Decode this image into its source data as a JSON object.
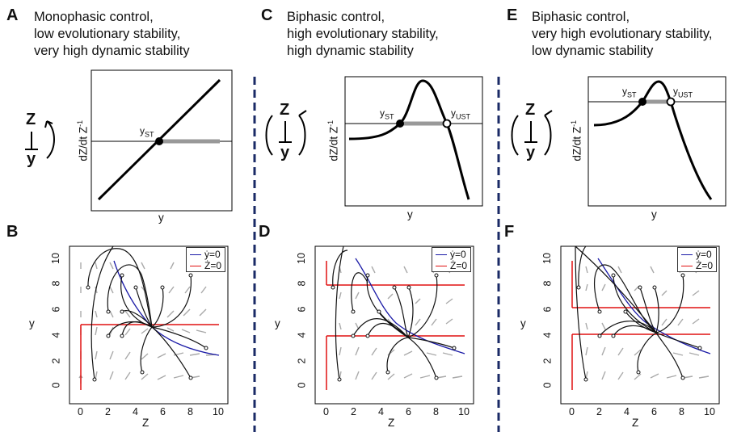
{
  "panels": {
    "A": {
      "label": "A",
      "lines": [
        "Monophasic control,",
        "low evolutionary stability,",
        "very high dynamic stability"
      ]
    },
    "C": {
      "label": "C",
      "lines": [
        "Biphasic control,",
        "high evolutionary stability,",
        "high dynamic stability"
      ]
    },
    "E": {
      "label": "E",
      "lines": [
        "Biphasic control,",
        "very high evolutionary stability,",
        "low dynamic stability"
      ]
    },
    "B": {
      "label": "B"
    },
    "D": {
      "label": "D"
    },
    "F": {
      "label": "F"
    }
  },
  "axes": {
    "top_ylabel": "dZ/dt Z",
    "top_ylabel_sup": "-1",
    "top_xlabel": "y",
    "bottom_ylabel": "y",
    "bottom_xlabel": "Z",
    "x_ticks": [
      "0",
      "2",
      "4",
      "6",
      "8",
      "10"
    ],
    "y_ticks": [
      "0",
      "2",
      "4",
      "6",
      "8",
      "10"
    ]
  },
  "markers": {
    "st": "y",
    "st_sub": "ST",
    "ust": "y",
    "ust_sub": "UST"
  },
  "legend": {
    "ydot": "ẏ=0",
    "zdot": "Ż=0"
  },
  "symbols": {
    "z": "Z",
    "y": "y"
  },
  "colors": {
    "ydot_null": "#1a1aa6",
    "zdot_null": "#e01010",
    "divider": "#1a2a66",
    "arrows": "#aaaaaa",
    "stable_segment": "#999999"
  }
}
